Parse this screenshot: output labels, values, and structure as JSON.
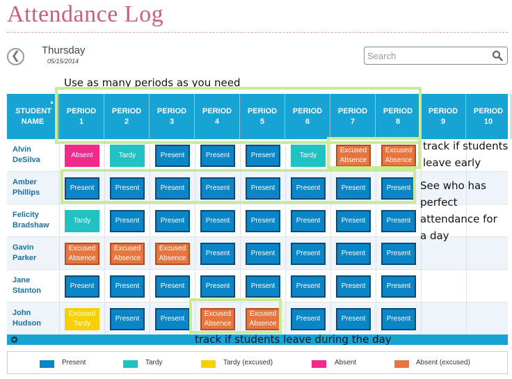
{
  "app": {
    "title": "Attendance Log"
  },
  "date_nav": {
    "back_glyph": "❮",
    "day": "Thursday",
    "date": "05/15/2014"
  },
  "search": {
    "placeholder": "Search",
    "value": ""
  },
  "table": {
    "student_header": "STUDENT NAME",
    "sort_arrow": "▲",
    "periods": [
      {
        "label": "PERIOD",
        "num": "1"
      },
      {
        "label": "PERIOD",
        "num": "2"
      },
      {
        "label": "PERIOD",
        "num": "3"
      },
      {
        "label": "PERIOD",
        "num": "4"
      },
      {
        "label": "PERIOD",
        "num": "5"
      },
      {
        "label": "PERIOD",
        "num": "6"
      },
      {
        "label": "PERIOD",
        "num": "7"
      },
      {
        "label": "PERIOD",
        "num": "8"
      },
      {
        "label": "PERIOD",
        "num": "9"
      },
      {
        "label": "PERIOD",
        "num": "10"
      }
    ],
    "rows": [
      {
        "first": "Alvin",
        "last": "DeSilva",
        "cells": [
          {
            "status": "absent",
            "text": "Absent"
          },
          {
            "status": "tardy",
            "text": "Tardy"
          },
          {
            "status": "present",
            "text": "Present"
          },
          {
            "status": "present",
            "text": "Present"
          },
          {
            "status": "present",
            "text": "Present"
          },
          {
            "status": "tardy",
            "text": "Tardy"
          },
          {
            "status": "absent-excused",
            "line1": "Excused",
            "line2": "Absence"
          },
          {
            "status": "absent-excused",
            "line1": "Excused",
            "line2": "Absence"
          }
        ]
      },
      {
        "first": "Amber",
        "last": "Phillips",
        "cells": [
          {
            "status": "present",
            "text": "Present"
          },
          {
            "status": "present",
            "text": "Present"
          },
          {
            "status": "present",
            "text": "Present"
          },
          {
            "status": "present",
            "text": "Present"
          },
          {
            "status": "present",
            "text": "Present"
          },
          {
            "status": "present",
            "text": "Present"
          },
          {
            "status": "present",
            "text": "Present"
          },
          {
            "status": "present",
            "text": "Present"
          }
        ]
      },
      {
        "first": "Felicity",
        "last": "Bradshaw",
        "cells": [
          {
            "status": "tardy",
            "text": "Tardy"
          },
          {
            "status": "present",
            "text": "Present"
          },
          {
            "status": "present",
            "text": "Present"
          },
          {
            "status": "present",
            "text": "Present"
          },
          {
            "status": "present",
            "text": "Present"
          },
          {
            "status": "present",
            "text": "Present"
          },
          {
            "status": "present",
            "text": "Present"
          },
          {
            "status": "present",
            "text": "Present"
          }
        ]
      },
      {
        "first": "Gavin",
        "last": "Parker",
        "cells": [
          {
            "status": "absent-excused",
            "line1": "Excused",
            "line2": "Absence"
          },
          {
            "status": "absent-excused",
            "line1": "Excused",
            "line2": "Absence"
          },
          {
            "status": "absent-excused",
            "line1": "Excused",
            "line2": "Absence"
          },
          {
            "status": "present",
            "text": "Present"
          },
          {
            "status": "present",
            "text": "Present"
          },
          {
            "status": "present",
            "text": "Present"
          },
          {
            "status": "present",
            "text": "Present"
          },
          {
            "status": "present",
            "text": "Present"
          }
        ]
      },
      {
        "first": "Jane",
        "last": "Stanton",
        "cells": [
          {
            "status": "present",
            "text": "Present"
          },
          {
            "status": "present",
            "text": "Present"
          },
          {
            "status": "present",
            "text": "Present"
          },
          {
            "status": "present",
            "text": "Present"
          },
          {
            "status": "present",
            "text": "Present"
          },
          {
            "status": "present",
            "text": "Present"
          },
          {
            "status": "present",
            "text": "Present"
          },
          {
            "status": "present",
            "text": "Present"
          }
        ]
      },
      {
        "first": "John",
        "last": "Hudson",
        "cells": [
          {
            "status": "tardy-excused",
            "line1": "Excused",
            "line2": "Tardy"
          },
          {
            "status": "present",
            "text": "Present"
          },
          {
            "status": "present",
            "text": "Present"
          },
          {
            "status": "absent-excused",
            "line1": "Excused",
            "line2": "Absence"
          },
          {
            "status": "absent-excused",
            "line1": "Excused",
            "line2": "Absence"
          },
          {
            "status": "present",
            "text": "Present"
          },
          {
            "status": "present",
            "text": "Present"
          },
          {
            "status": "present",
            "text": "Present"
          }
        ]
      }
    ]
  },
  "legend": [
    {
      "label": "Present",
      "color": "#0a86c7"
    },
    {
      "label": "Tardy",
      "color": "#1fc2c0"
    },
    {
      "label": "Tardy (excused)",
      "color": "#f8d000"
    },
    {
      "label": "Absent",
      "color": "#f22a8a"
    },
    {
      "label": "Absent (excused)",
      "color": "#e9753e"
    }
  ],
  "annotations": {
    "periods_note": "Use as many periods as you need",
    "leave_early_line1": "track if students",
    "leave_early_line2": "leave early",
    "perfect_line1": "See who has",
    "perfect_line2": "perfect",
    "perfect_line3": "attendance for",
    "perfect_line4": "a day",
    "during_day": "track if students leave during the day"
  },
  "colors": {
    "accent": "#17a3d4",
    "title": "#c9607a",
    "highlight": "#c8eb94"
  }
}
